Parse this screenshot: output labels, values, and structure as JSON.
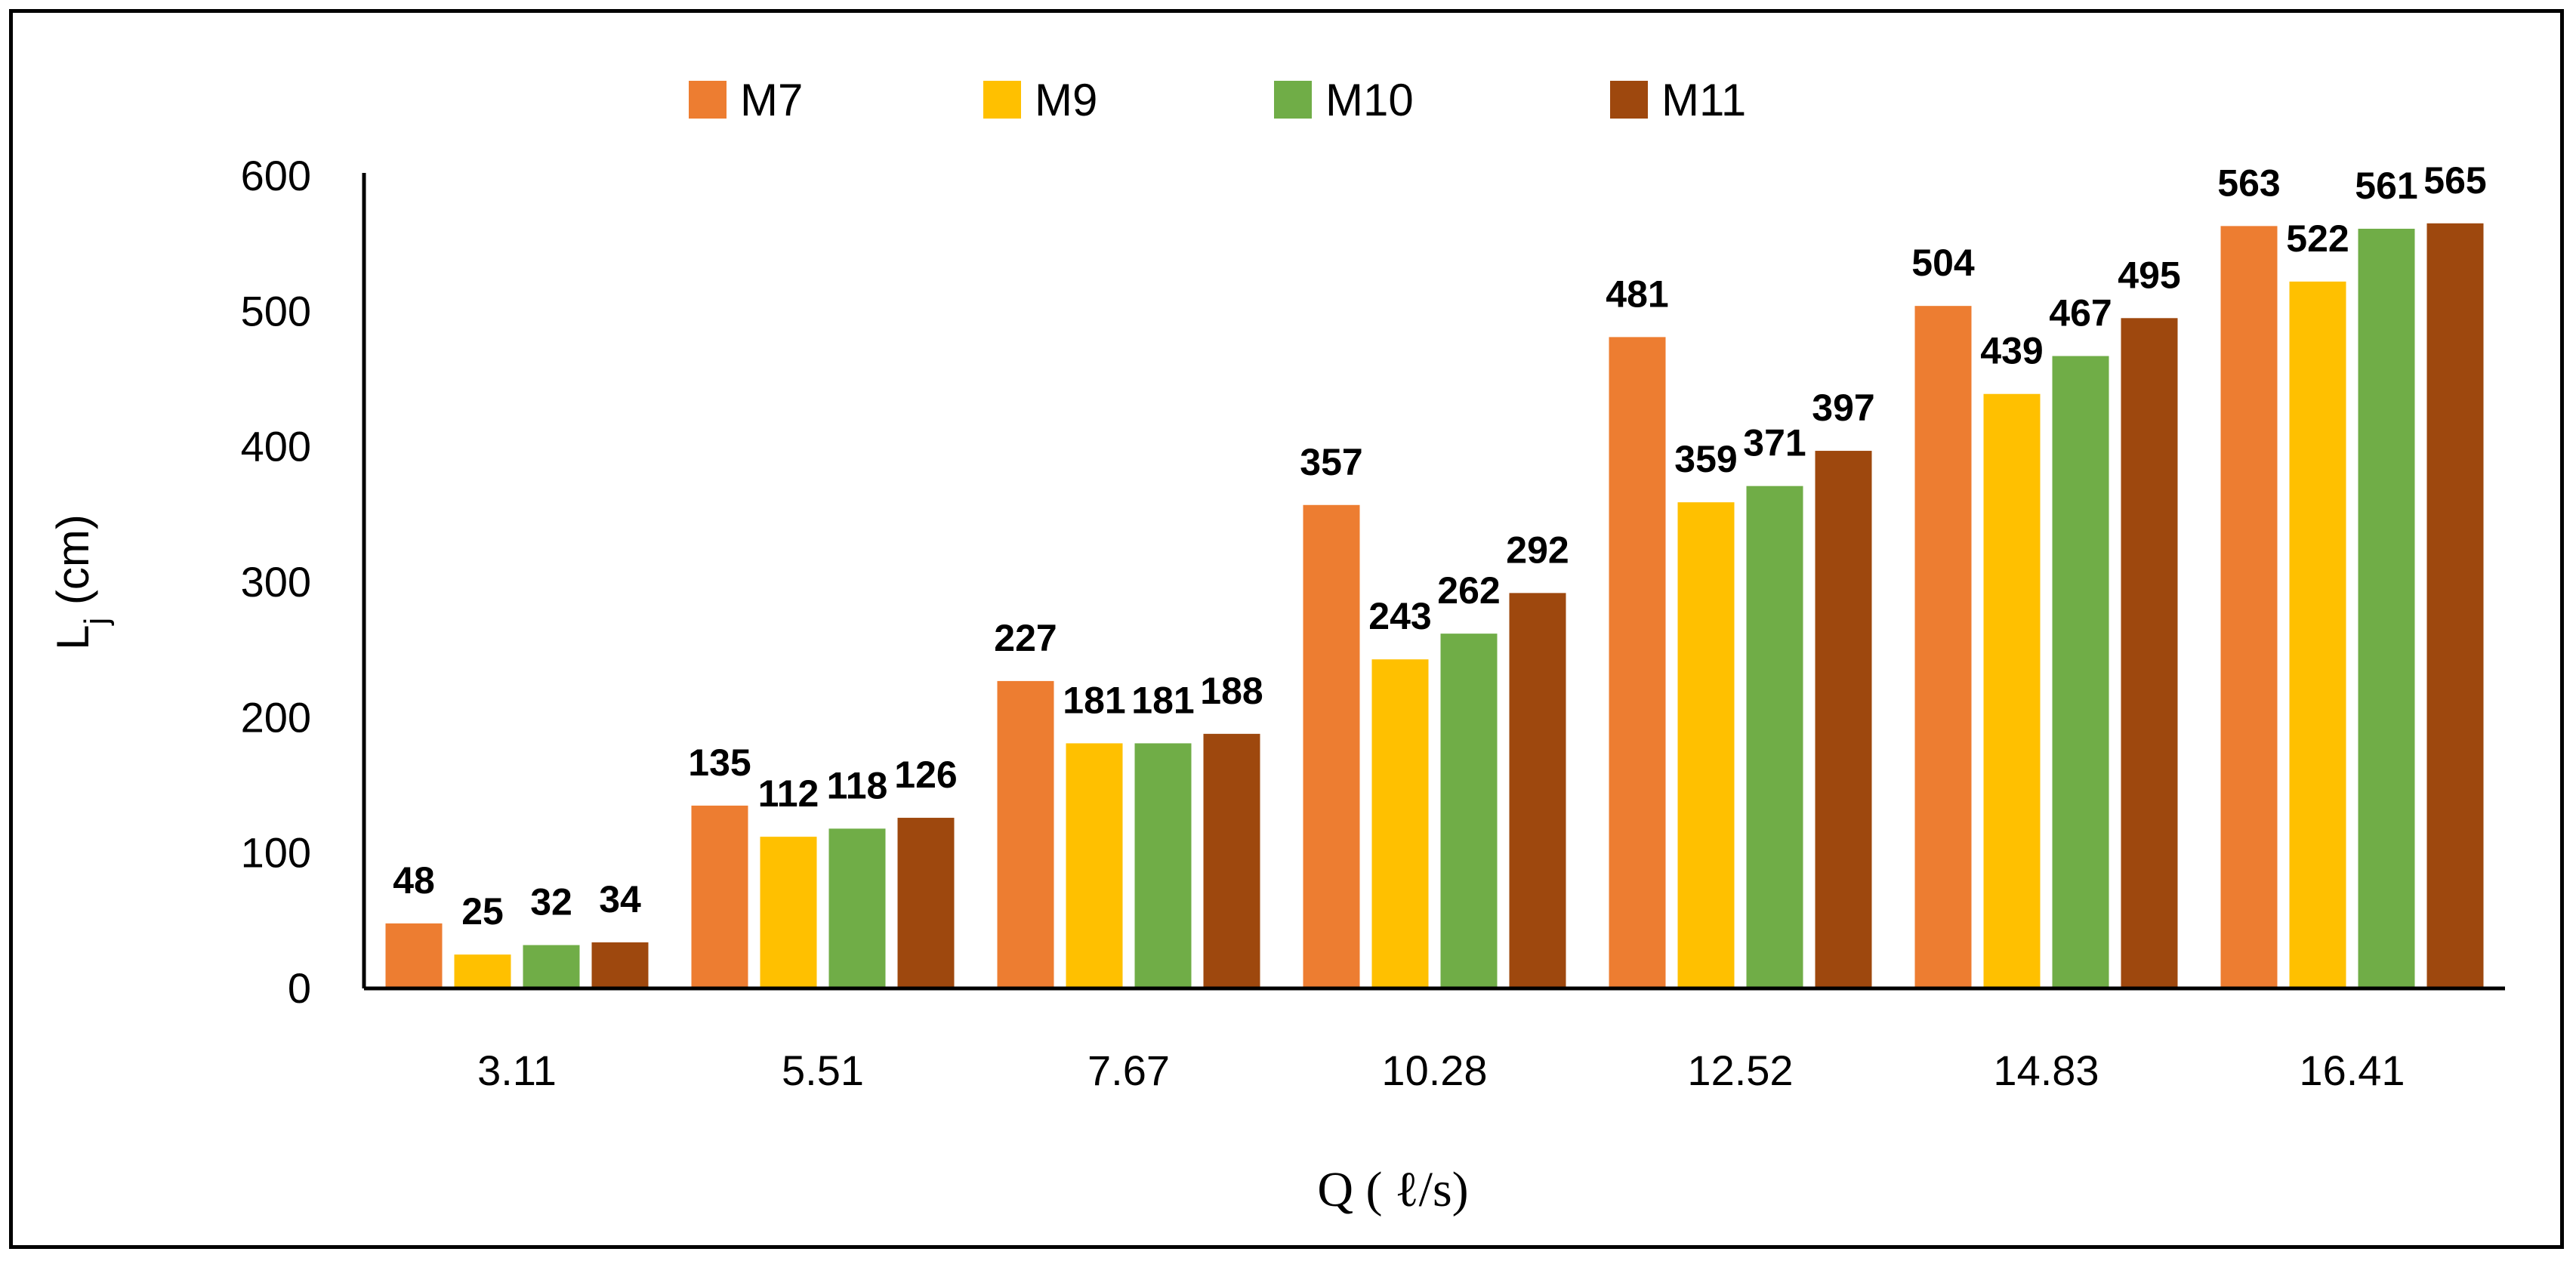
{
  "chart_data": {
    "type": "bar",
    "categories": [
      "3.11",
      "5.51",
      "7.67",
      "10.28",
      "12.52",
      "14.83",
      "16.41"
    ],
    "series": [
      {
        "name": "M7",
        "color": "#ED7D31",
        "values": [
          48,
          135,
          227,
          357,
          481,
          504,
          563
        ]
      },
      {
        "name": "M9",
        "color": "#FFC000",
        "values": [
          25,
          112,
          181,
          243,
          359,
          439,
          522
        ]
      },
      {
        "name": "M10",
        "color": "#70AD47",
        "values": [
          32,
          118,
          181,
          262,
          371,
          467,
          561
        ]
      },
      {
        "name": "M11",
        "color": "#9E480E",
        "values": [
          34,
          126,
          188,
          292,
          397,
          495,
          565
        ]
      }
    ],
    "xlabel": "Q (  ℓ/s)",
    "ylabel": {
      "main": "L",
      "sub": "j",
      "rest": " (cm)"
    },
    "ylim": [
      0,
      600
    ],
    "yticks": [
      0,
      100,
      200,
      300,
      400,
      500,
      600
    ],
    "grid": false,
    "legend_position": "top",
    "data_labels": true
  }
}
